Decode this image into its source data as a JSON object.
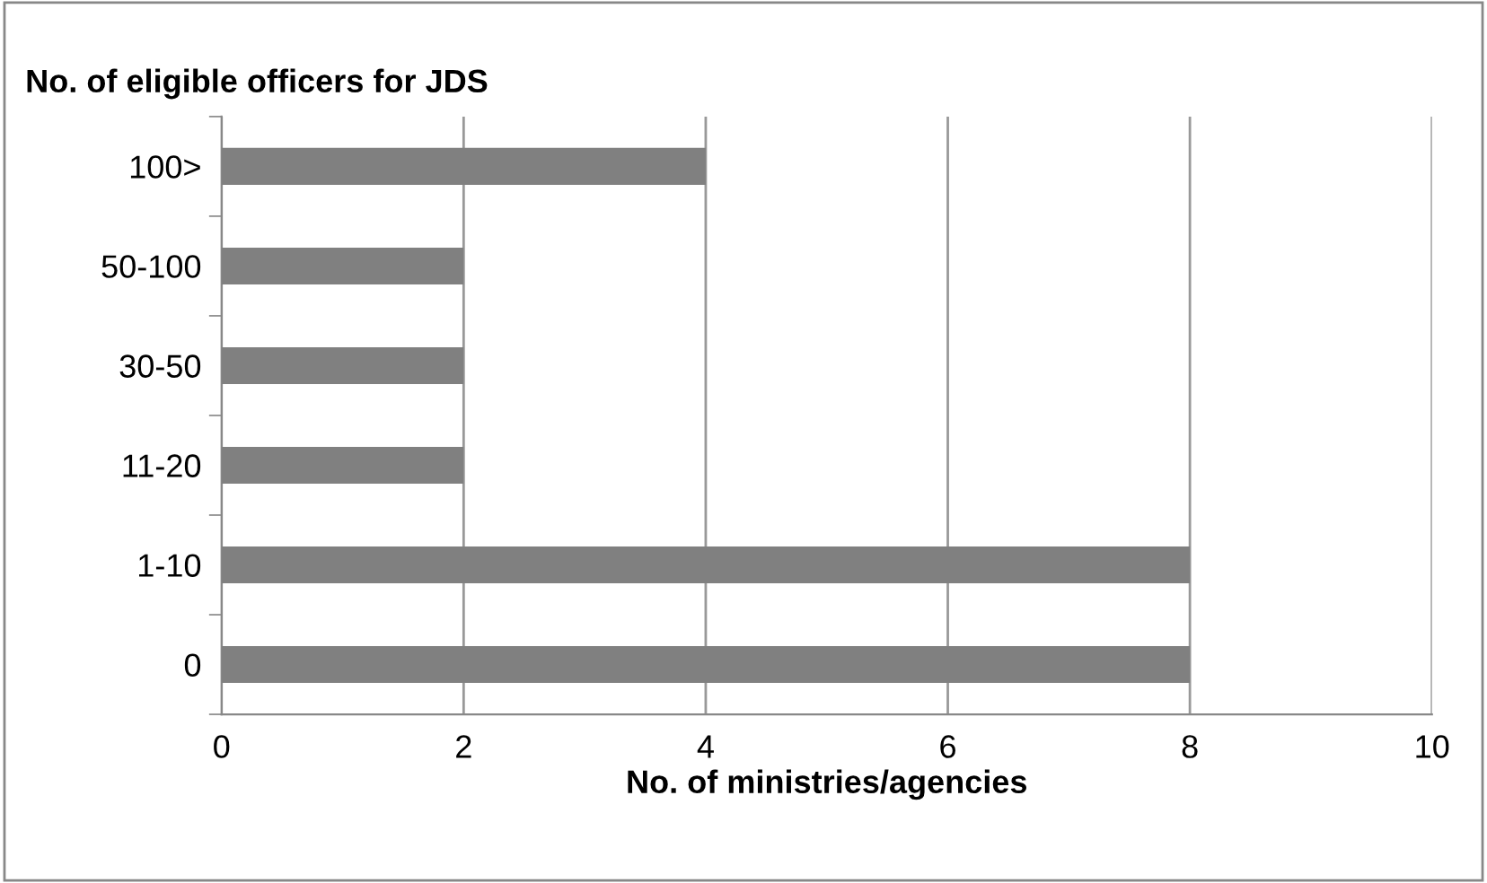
{
  "chart_data": {
    "type": "bar",
    "orientation": "horizontal",
    "title": "No. of eligible officers for JDS",
    "xlabel": "No. of ministries/agencies",
    "categories": [
      "100>",
      "50-100",
      "30-50",
      "11-20",
      "1-10",
      "0"
    ],
    "values": [
      4,
      2,
      2,
      2,
      8,
      8
    ],
    "color": "#808080",
    "xlim": [
      0,
      10
    ],
    "xticks": [
      0,
      2,
      4,
      6,
      8,
      10
    ],
    "grid": "x",
    "legend": false
  }
}
